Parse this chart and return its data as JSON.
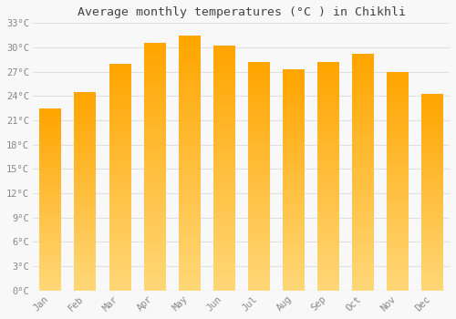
{
  "title": "Average monthly temperatures (°C ) in Chikhli",
  "months": [
    "Jan",
    "Feb",
    "Mar",
    "Apr",
    "May",
    "Jun",
    "Jul",
    "Aug",
    "Sep",
    "Oct",
    "Nov",
    "Dec"
  ],
  "values": [
    22.5,
    24.5,
    28.0,
    30.5,
    31.5,
    30.2,
    28.2,
    27.3,
    28.2,
    29.2,
    27.0,
    24.2
  ],
  "bar_color_top": "#FFB300",
  "bar_color_bottom": "#FFD060",
  "background_color": "#F8F8F8",
  "grid_color": "#E0E0E0",
  "tick_label_color": "#888888",
  "title_color": "#444444",
  "ylim": [
    0,
    33
  ],
  "yticks": [
    0,
    3,
    6,
    9,
    12,
    15,
    18,
    21,
    24,
    27,
    30,
    33
  ],
  "ytick_labels": [
    "0°C",
    "3°C",
    "6°C",
    "9°C",
    "12°C",
    "15°C",
    "18°C",
    "21°C",
    "24°C",
    "27°C",
    "30°C",
    "33°C"
  ]
}
